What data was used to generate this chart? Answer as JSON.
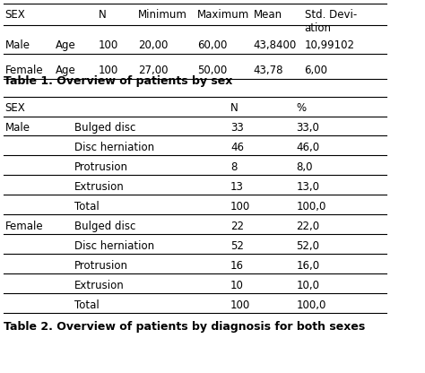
{
  "table1_header": [
    "SEX",
    "",
    "N",
    "Minimum",
    "Maximum",
    "Mean",
    "Std. Dev-\nation"
  ],
  "table1_rows": [
    [
      "Male",
      "Age",
      "100",
      "20,00",
      "60,00",
      "43,8400",
      "10,99102"
    ],
    [
      "Female",
      "Age",
      "100",
      "27,00",
      "50,00",
      "43,78",
      "6,00"
    ]
  ],
  "table1_caption": "Table 1. Overview of patients by sex",
  "table2_header": [
    "SEX",
    "",
    "N",
    "%"
  ],
  "table2_rows": [
    [
      "Male",
      "Bulged disc",
      "33",
      "33,0"
    ],
    [
      "",
      "Disc herniation",
      "46",
      "46,0"
    ],
    [
      "",
      "Protrusion",
      "8",
      "8,0"
    ],
    [
      "",
      "Extrusion",
      "13",
      "13,0"
    ],
    [
      "",
      "Total",
      "100",
      "100,0"
    ],
    [
      "Female",
      "Bulged disc",
      "22",
      "22,0"
    ],
    [
      "",
      "Disc herniation",
      "52",
      "52,0"
    ],
    [
      "",
      "Protrusion",
      "16",
      "16,0"
    ],
    [
      "",
      "Extrusion",
      "10",
      "10,0"
    ],
    [
      "",
      "Total",
      "100",
      "100,0"
    ]
  ],
  "table2_caption": "Table 2. Overview of patients by diagnosis for both sexes",
  "bg_color": "#ffffff",
  "text_color": "#000000",
  "line_color": "#000000",
  "font_size": 8.5,
  "caption_font_size": 9.0
}
